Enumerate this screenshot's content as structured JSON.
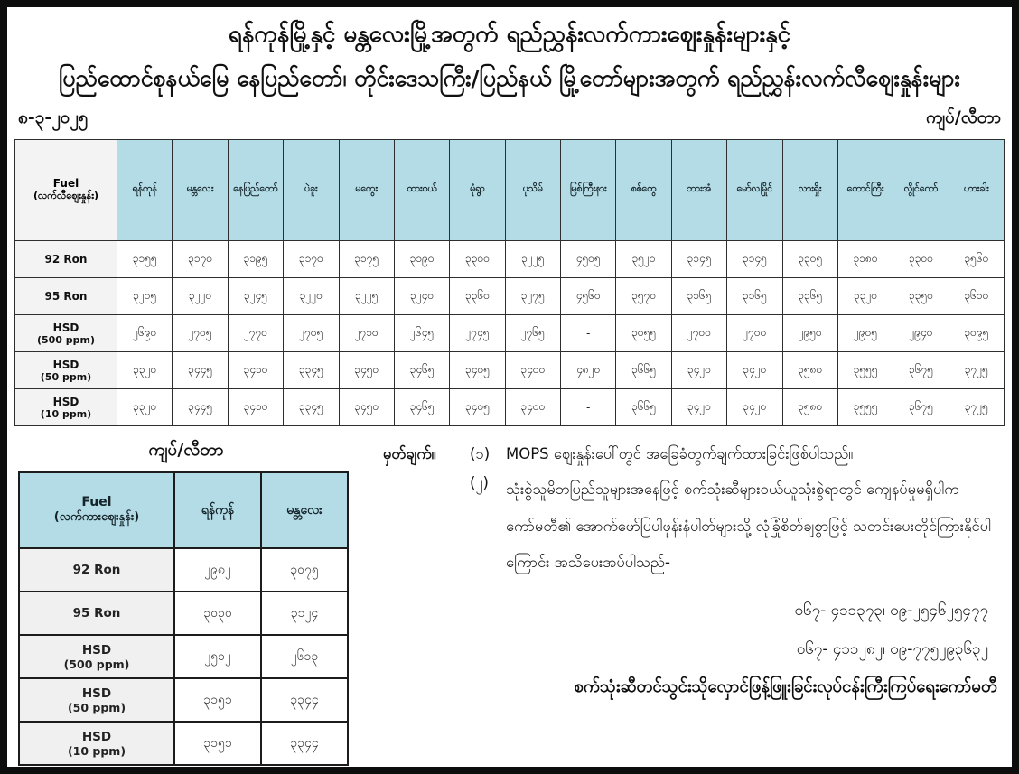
{
  "title": {
    "line1": "ရန်ကုန်မြို့နှင့် မန္တလေးမြို့အတွက် ရည်ညွှန်းလက်ကားဈေးနှုန်းများနှင့်",
    "line2": "ပြည်ထောင်စုနယ်မြေ နေပြည်တော်၊ တိုင်းဒေသကြီး/ပြည်နယ် မြို့တော်များအတွက် ရည်ညွှန်းလက်လီဈေးနှုန်းများ"
  },
  "date": "၈-၃-၂၀၂၅",
  "unit_label": "ကျပ်/လီတာ",
  "retail_table": {
    "corner_header": {
      "line1": "Fuel",
      "line2": "(လက်လီဈေးနှုန်း)"
    },
    "city_columns": [
      "ရန်ကုန်",
      "မန္တလေး",
      "နေပြည်တော်",
      "ပဲခူး",
      "မကွေး",
      "ထားဝယ်",
      "မုံရွာ",
      "ပုသိမ်",
      "မြစ်ကြီးနား",
      "စစ်တွေ",
      "ဘားအံ",
      "မော်လမြိုင်",
      "လားရှိုး",
      "တောင်ကြီး",
      "လွိုင်ကော်",
      "ဟားခါး"
    ],
    "rows": [
      {
        "fuel_line1": "92 Ron",
        "fuel_line2": "",
        "values": [
          "၃၁၅၅",
          "၃၁၇၀",
          "၃၁၉၅",
          "၃၁၇၀",
          "၃၁၇၅",
          "၃၁၉၀",
          "၃၃၀၀",
          "၃၂၂၅",
          "၄၅၀၅",
          "၃၅၂၀",
          "၃၁၄၅",
          "၃၁၄၅",
          "၃၃၀၅",
          "၃၁၈၀",
          "၃၃၀၀",
          "၃၅၆၀"
        ]
      },
      {
        "fuel_line1": "95 Ron",
        "fuel_line2": "",
        "values": [
          "၃၂၀၅",
          "၃၂၂၀",
          "၃၂၄၅",
          "၃၂၂၀",
          "၃၂၂၅",
          "၃၂၄၀",
          "၃၃၆၀",
          "၃၂၇၅",
          "၄၅၆၀",
          "၃၅၇၀",
          "၃၁၆၅",
          "၃၁၆၅",
          "၃၃၆၅",
          "၃၃၂၀",
          "၃၃၅၀",
          "၃၆၁၀"
        ]
      },
      {
        "fuel_line1": "HSD",
        "fuel_line2": "(500 ppm)",
        "values": [
          "၂၆၉၀",
          "၂၇၀၅",
          "၂၇၇၀",
          "၂၇၀၅",
          "၂၇၁၀",
          "၂၆၄၅",
          "၂၇၄၅",
          "၂၇၆၅",
          "-",
          "၃၀၅၅",
          "၂၇၀၀",
          "၂၇၀၀",
          "၂၉၅၀",
          "၂၉၀၅",
          "၂၉၄၀",
          "၃၀၉၅"
        ]
      },
      {
        "fuel_line1": "HSD",
        "fuel_line2": "(50 ppm)",
        "values": [
          "၃၃၂၀",
          "၃၄၄၅",
          "၃၄၁၀",
          "၃၃၄၅",
          "၃၄၅၀",
          "၃၄၆၅",
          "၃၄၀၅",
          "၃၄၀၀",
          "၄၈၂၀",
          "၃၆၆၅",
          "၃၄၂၀",
          "၃၄၂၀",
          "၃၅၈၀",
          "၃၅၅၅",
          "၃၆၇၅",
          "၃၇၂၅"
        ]
      },
      {
        "fuel_line1": "HSD",
        "fuel_line2": "(10 ppm)",
        "values": [
          "၃၃၂၀",
          "၃၄၄၅",
          "၃၄၁၀",
          "၃၃၄၅",
          "၃၄၅၀",
          "၃၄၆၅",
          "၃၄၀၅",
          "၃၄၀၀",
          "-",
          "၃၆၆၅",
          "၃၄၂၀",
          "၃၄၂၀",
          "၃၅၈၀",
          "၃၅၅၅",
          "၃၆၇၅",
          "၃၇၂၅"
        ]
      }
    ]
  },
  "wholesale_table": {
    "unit_label": "ကျပ်/လီတာ",
    "corner_header": {
      "line1": "Fuel",
      "line2": "(လက်ကားဈေးနှုန်း)"
    },
    "city_columns": [
      "ရန်ကုန်",
      "မန္တလေး"
    ],
    "rows": [
      {
        "fuel_line1": "92 Ron",
        "fuel_line2": "",
        "values": [
          "၂၉၈၂",
          "၃၀၇၅"
        ]
      },
      {
        "fuel_line1": "95 Ron",
        "fuel_line2": "",
        "values": [
          "၃၀၃၀",
          "၃၁၂၄"
        ]
      },
      {
        "fuel_line1": "HSD",
        "fuel_line2": "(500 ppm)",
        "values": [
          "၂၅၁၂",
          "၂၆၁၃"
        ]
      },
      {
        "fuel_line1": "HSD",
        "fuel_line2": "(50 ppm)",
        "values": [
          "၃၁၅၁",
          "၃၃၄၄"
        ]
      },
      {
        "fuel_line1": "HSD",
        "fuel_line2": "(10 ppm)",
        "values": [
          "၃၁၅၁",
          "၃၃၄၄"
        ]
      }
    ]
  },
  "notes": {
    "label": "မှတ်ချက်။",
    "items": [
      {
        "num": "(၁)",
        "text": "MOPS ဈေးနှုန်းပေါ်တွင် အခြေခံတွက်ချက်ထားခြင်းဖြစ်ပါသည်။"
      },
      {
        "num": "(၂)",
        "text": "သုံးစွဲသူမိဘပြည်သူများအနေဖြင့် စက်သုံးဆီများဝယ်ယူသုံးစွဲရာတွင် ကျေနပ်မှုမရှိပါက ကော်မတီ၏ အောက်ဖော်ပြပါဖုန်းနံပါတ်များသို့ လုံခြုံစိတ်ချစွာဖြင့် သတင်းပေးတိုင်ကြားနိုင်ပါကြောင်း အသိပေးအပ်ပါသည်-"
      }
    ],
    "phone1": "ဝ၆၇- ၄၁၁၃၇၃၊ ဝ၉-၂၅၄၆၂၅၄၇၇",
    "phone2": "ဝ၆၇- ၄၁၁၂၈၂၊ ဝ၉-၇၇၅၂၉၃၆၃၂",
    "footer": "စက်သုံးဆီတင်သွင်းသိုလှောင်ဖြန့်ဖြူးခြင်းလုပ်ငန်းကြီးကြပ်ရေးကော်မတီ"
  },
  "colors": {
    "header_bg": "#b4dce6",
    "label_bg": "#f3f3f3",
    "border": "#2e2e2e",
    "frame": "#0d0d0d"
  }
}
